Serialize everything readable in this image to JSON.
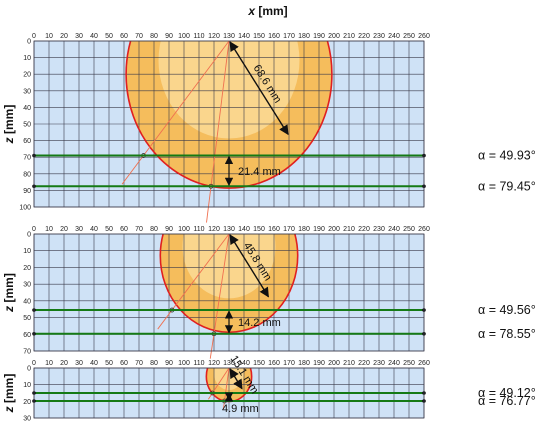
{
  "x_axis": {
    "label_symbol": "x",
    "label_unit": "[mm]",
    "ticks": [
      "0",
      "10",
      "20",
      "30",
      "40",
      "50",
      "60",
      "70",
      "80",
      "90",
      "100",
      "110",
      "120",
      "130",
      "140",
      "150",
      "160",
      "170",
      "180",
      "190",
      "200",
      "210",
      "220",
      "230",
      "240",
      "250",
      "260"
    ]
  },
  "panels": [
    {
      "id": "large",
      "z_label_symbol": "z",
      "z_label_unit": "[mm]",
      "z_ticks": [
        "0",
        "10",
        "20",
        "30",
        "40",
        "50",
        "60",
        "70",
        "80",
        "90",
        "100"
      ],
      "z_max": 100,
      "radius_label": "68.6 mm",
      "depth_label": "21.4 mm",
      "alpha_labels": [
        "α = 49.93°",
        "α = 79.45°"
      ],
      "circle": {
        "cx": 130,
        "cz": 20,
        "r": 68.6,
        "inner_r": 47
      },
      "levels_z": [
        69,
        87.5
      ],
      "alpha_deg": [
        49.93,
        79.45
      ],
      "contact_points": [
        {
          "x": 73,
          "z": 69
        },
        {
          "x": 118,
          "z": 87.5
        }
      ]
    },
    {
      "id": "medium",
      "z_label_symbol": "z",
      "z_label_unit": "[mm]",
      "z_ticks": [
        "0",
        "10",
        "20",
        "30",
        "40",
        "50",
        "60",
        "70"
      ],
      "z_max": 70,
      "radius_label": "45.8 mm",
      "depth_label": "14.2 mm",
      "alpha_labels": [
        "α = 49.56°",
        "α = 78.55°"
      ],
      "circle": {
        "cx": 130,
        "cz": 13,
        "r": 45.8,
        "inner_r": 31
      },
      "levels_z": [
        45.5,
        59.7
      ],
      "alpha_deg": [
        49.56,
        78.55
      ],
      "contact_points": [
        {
          "x": 92,
          "z": 45.5
        },
        {
          "x": 120,
          "z": 59.7
        }
      ]
    },
    {
      "id": "small",
      "z_label_symbol": "z",
      "z_label_unit": "[mm]",
      "z_ticks": [
        "0",
        "10",
        "20",
        "30"
      ],
      "z_max": 30,
      "radius_label": "15.1 mm",
      "depth_label": "4.9 mm",
      "alpha_labels": [
        "α = 49.12°",
        "α = 76.77°"
      ],
      "circle": {
        "cx": 130,
        "cz": 5,
        "r": 15.1,
        "inner_r": 10
      },
      "levels_z": [
        15,
        19.8
      ],
      "alpha_deg": [
        49.12,
        76.77
      ],
      "contact_points": [
        {
          "x": 119,
          "z": 15
        },
        {
          "x": 127,
          "z": 19.8
        }
      ]
    }
  ],
  "colors": {
    "grid_background": "#cfe2f6",
    "grid_line": "#3a3a4a",
    "disc_outer": "#f5bd5c",
    "disc_inner": "#fbd892",
    "outline": "#e02020",
    "level_line": "#157a15",
    "construction_line": "#f07050",
    "arrow": "#111111"
  }
}
